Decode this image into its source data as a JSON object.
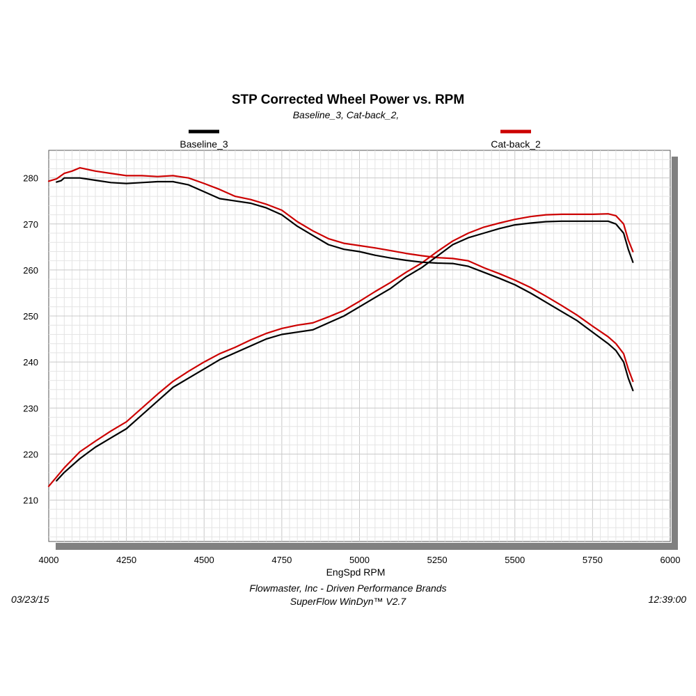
{
  "chart_data": {
    "type": "line",
    "title": "STP Corrected Wheel Power vs. RPM",
    "subtitle": "Baseline_3, Cat-back_2,",
    "xlabel": "EngSpd  RPM",
    "ylabel": "",
    "xlim": [
      4000,
      6000
    ],
    "ylim": [
      201,
      286
    ],
    "x_ticks": [
      4000,
      4250,
      4500,
      4750,
      5000,
      5250,
      5500,
      5750,
      6000
    ],
    "y_ticks": [
      210,
      220,
      230,
      240,
      250,
      260,
      270,
      280
    ],
    "grid": true,
    "legend_position": "top",
    "series": [
      {
        "name": "Baseline_3",
        "color": "#000000",
        "curves": [
          {
            "label": "power",
            "points": [
              [
                4025,
                214.2
              ],
              [
                4050,
                216
              ],
              [
                4100,
                219
              ],
              [
                4150,
                221.5
              ],
              [
                4200,
                223.5
              ],
              [
                4250,
                225.5
              ],
              [
                4300,
                228.5
              ],
              [
                4350,
                231.5
              ],
              [
                4400,
                234.5
              ],
              [
                4450,
                236.5
              ],
              [
                4500,
                238.5
              ],
              [
                4550,
                240.5
              ],
              [
                4600,
                242
              ],
              [
                4650,
                243.5
              ],
              [
                4700,
                245
              ],
              [
                4750,
                246
              ],
              [
                4800,
                246.5
              ],
              [
                4850,
                247
              ],
              [
                4900,
                248.5
              ],
              [
                4950,
                250
              ],
              [
                5000,
                252
              ],
              [
                5050,
                254
              ],
              [
                5100,
                256
              ],
              [
                5150,
                258.5
              ],
              [
                5200,
                260.5
              ],
              [
                5250,
                263
              ],
              [
                5300,
                265.5
              ],
              [
                5350,
                267
              ],
              [
                5400,
                268
              ],
              [
                5450,
                269
              ],
              [
                5500,
                269.8
              ],
              [
                5550,
                270.2
              ],
              [
                5600,
                270.5
              ],
              [
                5650,
                270.6
              ],
              [
                5700,
                270.6
              ],
              [
                5750,
                270.6
              ],
              [
                5800,
                270.6
              ],
              [
                5825,
                270
              ],
              [
                5850,
                268
              ],
              [
                5865,
                264.5
              ],
              [
                5880,
                261.7
              ]
            ]
          },
          {
            "label": "torque",
            "points": [
              [
                4025,
                279.1
              ],
              [
                4040,
                279.4
              ],
              [
                4050,
                280
              ],
              [
                4100,
                280
              ],
              [
                4150,
                279.5
              ],
              [
                4200,
                279
              ],
              [
                4250,
                278.8
              ],
              [
                4300,
                279
              ],
              [
                4350,
                279.2
              ],
              [
                4400,
                279.2
              ],
              [
                4450,
                278.5
              ],
              [
                4500,
                277
              ],
              [
                4550,
                275.5
              ],
              [
                4600,
                275
              ],
              [
                4650,
                274.5
              ],
              [
                4700,
                273.5
              ],
              [
                4750,
                272
              ],
              [
                4800,
                269.5
              ],
              [
                4850,
                267.5
              ],
              [
                4900,
                265.5
              ],
              [
                4950,
                264.5
              ],
              [
                5000,
                264
              ],
              [
                5050,
                263.2
              ],
              [
                5100,
                262.6
              ],
              [
                5150,
                262.1
              ],
              [
                5200,
                261.7
              ],
              [
                5250,
                261.5
              ],
              [
                5300,
                261.4
              ],
              [
                5350,
                260.8
              ],
              [
                5400,
                259.5
              ],
              [
                5450,
                258.2
              ],
              [
                5500,
                256.8
              ],
              [
                5550,
                255
              ],
              [
                5600,
                253
              ],
              [
                5650,
                251
              ],
              [
                5700,
                249
              ],
              [
                5750,
                246.5
              ],
              [
                5800,
                244
              ],
              [
                5825,
                242.5
              ],
              [
                5850,
                240
              ],
              [
                5865,
                236.5
              ],
              [
                5880,
                233.8
              ]
            ]
          }
        ]
      },
      {
        "name": "Cat-back_2",
        "color": "#cc0000",
        "curves": [
          {
            "label": "power",
            "points": [
              [
                4000,
                213
              ],
              [
                4025,
                215
              ],
              [
                4050,
                217
              ],
              [
                4100,
                220.5
              ],
              [
                4150,
                222.8
              ],
              [
                4200,
                225
              ],
              [
                4250,
                227
              ],
              [
                4300,
                230
              ],
              [
                4350,
                233
              ],
              [
                4400,
                235.8
              ],
              [
                4450,
                238
              ],
              [
                4500,
                240
              ],
              [
                4550,
                241.8
              ],
              [
                4600,
                243.2
              ],
              [
                4650,
                244.8
              ],
              [
                4700,
                246.2
              ],
              [
                4750,
                247.3
              ],
              [
                4800,
                248
              ],
              [
                4850,
                248.5
              ],
              [
                4900,
                249.8
              ],
              [
                4950,
                251.2
              ],
              [
                5000,
                253.2
              ],
              [
                5050,
                255.3
              ],
              [
                5100,
                257.3
              ],
              [
                5150,
                259.5
              ],
              [
                5200,
                261.5
              ],
              [
                5250,
                264
              ],
              [
                5300,
                266.3
              ],
              [
                5350,
                268
              ],
              [
                5400,
                269.3
              ],
              [
                5450,
                270.2
              ],
              [
                5500,
                271
              ],
              [
                5550,
                271.6
              ],
              [
                5600,
                272
              ],
              [
                5650,
                272.1
              ],
              [
                5700,
                272.1
              ],
              [
                5750,
                272.1
              ],
              [
                5800,
                272.2
              ],
              [
                5825,
                271.8
              ],
              [
                5850,
                270
              ],
              [
                5865,
                266.5
              ],
              [
                5880,
                264
              ]
            ]
          },
          {
            "label": "torque",
            "points": [
              [
                4000,
                279.3
              ],
              [
                4025,
                279.8
              ],
              [
                4050,
                281
              ],
              [
                4075,
                281.5
              ],
              [
                4100,
                282.2
              ],
              [
                4150,
                281.5
              ],
              [
                4200,
                281
              ],
              [
                4250,
                280.5
              ],
              [
                4300,
                280.5
              ],
              [
                4350,
                280.3
              ],
              [
                4400,
                280.5
              ],
              [
                4450,
                280
              ],
              [
                4500,
                278.8
              ],
              [
                4550,
                277.5
              ],
              [
                4600,
                276
              ],
              [
                4650,
                275.3
              ],
              [
                4700,
                274.3
              ],
              [
                4750,
                273
              ],
              [
                4800,
                270.5
              ],
              [
                4850,
                268.5
              ],
              [
                4900,
                266.8
              ],
              [
                4950,
                265.8
              ],
              [
                5000,
                265.3
              ],
              [
                5050,
                264.8
              ],
              [
                5100,
                264.2
              ],
              [
                5150,
                263.6
              ],
              [
                5200,
                263.1
              ],
              [
                5250,
                262.7
              ],
              [
                5300,
                262.5
              ],
              [
                5350,
                262
              ],
              [
                5400,
                260.5
              ],
              [
                5450,
                259.2
              ],
              [
                5500,
                257.8
              ],
              [
                5550,
                256.2
              ],
              [
                5600,
                254.3
              ],
              [
                5650,
                252.3
              ],
              [
                5700,
                250.2
              ],
              [
                5750,
                247.8
              ],
              [
                5800,
                245.5
              ],
              [
                5825,
                244
              ],
              [
                5850,
                241.8
              ],
              [
                5865,
                238.5
              ],
              [
                5880,
                235.8
              ]
            ]
          }
        ]
      }
    ]
  },
  "footer": {
    "company": "Flowmaster, Inc - Driven Performance Brands",
    "software": "SuperFlow WinDyn™ V2.7",
    "date": "03/23/15",
    "time": "12:39:00"
  }
}
